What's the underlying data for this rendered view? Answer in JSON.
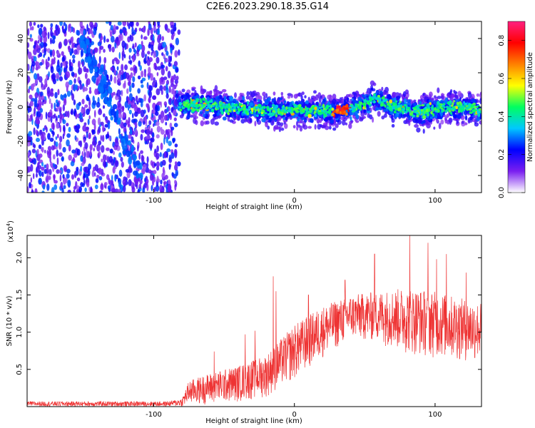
{
  "title": "C2E6.2023.290.18.35.G14",
  "chart_data": [
    {
      "type": "heatmap",
      "xlabel": "Height of straight line (km)",
      "ylabel": "Frequency (Hz)",
      "xlim": [
        -190,
        133
      ],
      "ylim": [
        -50,
        50
      ],
      "xticks": [
        -100,
        0,
        100
      ],
      "yticks": [
        -40,
        -20,
        0,
        20,
        40
      ],
      "noise_region_x": [
        -190,
        -82
      ],
      "noisy_streak": [
        {
          "x": -150,
          "y": 40
        },
        {
          "x": -130,
          "y": 0
        },
        {
          "x": -110,
          "y": -40
        }
      ],
      "ridge": [
        {
          "x": -82,
          "y": 1
        },
        {
          "x": -60,
          "y": 1
        },
        {
          "x": -40,
          "y": -1
        },
        {
          "x": -20,
          "y": -2
        },
        {
          "x": 0,
          "y": -2
        },
        {
          "x": 20,
          "y": -2
        },
        {
          "x": 30,
          "y": -2
        },
        {
          "x": 40,
          "y": -1
        },
        {
          "x": 50,
          "y": 2
        },
        {
          "x": 57,
          "y": 5
        },
        {
          "x": 70,
          "y": 0
        },
        {
          "x": 90,
          "y": -3
        },
        {
          "x": 110,
          "y": 0
        },
        {
          "x": 125,
          "y": 0
        },
        {
          "x": 133,
          "y": -3
        }
      ],
      "ridge_peak_x_range": [
        27,
        40
      ],
      "colorbar": {
        "label": "Normalized spectral amplitude",
        "range": [
          0,
          0.9
        ],
        "ticks": [
          0.0,
          0.2,
          0.4,
          0.6,
          0.8
        ],
        "tick_labels": [
          "0.0",
          "0.2",
          "0.4",
          "0.6",
          "0.8"
        ],
        "colors": [
          "#ffffff",
          "#7a1ef0",
          "#0000ff",
          "#00c8ff",
          "#00ff60",
          "#ffff00",
          "#ff8000",
          "#ff0000",
          "#ff2080"
        ]
      }
    },
    {
      "type": "line",
      "xlabel": "Height of straight line (km)",
      "ylabel": "SNR (10 * v/v)",
      "multiplier": "(x10",
      "multiplier_exp": "4",
      "multiplier_close": ")",
      "xlim": [
        -190,
        133
      ],
      "ylim": [
        0,
        23000
      ],
      "xticks": [
        -100,
        0,
        100
      ],
      "yticks": [
        5000,
        10000,
        15000,
        20000
      ],
      "ytick_labels": [
        "0.5",
        "1.0",
        "1.5",
        "2.0"
      ],
      "color": "#ee3333",
      "envelope": [
        {
          "x": -190,
          "base": 0,
          "top": 700
        },
        {
          "x": -90,
          "base": 0,
          "top": 700
        },
        {
          "x": -80,
          "base": 0,
          "top": 1100
        },
        {
          "x": -75,
          "base": 200,
          "top": 3500
        },
        {
          "x": -60,
          "base": 300,
          "top": 4500
        },
        {
          "x": -40,
          "base": 600,
          "top": 5500
        },
        {
          "x": -20,
          "base": 1200,
          "top": 7000
        },
        {
          "x": -10,
          "base": 2500,
          "top": 9000
        },
        {
          "x": 0,
          "base": 3500,
          "top": 11000
        },
        {
          "x": 20,
          "base": 6500,
          "top": 13500
        },
        {
          "x": 40,
          "base": 9000,
          "top": 15000
        },
        {
          "x": 60,
          "base": 8500,
          "top": 15500
        },
        {
          "x": 80,
          "base": 7000,
          "top": 16000
        },
        {
          "x": 100,
          "base": 6500,
          "top": 15500
        },
        {
          "x": 120,
          "base": 6000,
          "top": 14500
        },
        {
          "x": 133,
          "base": 6000,
          "top": 14000
        }
      ],
      "spikes": [
        {
          "x": -57,
          "y": 7400
        },
        {
          "x": -35,
          "y": 9700
        },
        {
          "x": -28,
          "y": 10200
        },
        {
          "x": -15,
          "y": 17500
        },
        {
          "x": -13,
          "y": 15500
        },
        {
          "x": 10,
          "y": 15000
        },
        {
          "x": 36,
          "y": 17000
        },
        {
          "x": 57,
          "y": 20500
        },
        {
          "x": 82,
          "y": 23000
        },
        {
          "x": 95,
          "y": 22000
        },
        {
          "x": 101,
          "y": 19800
        },
        {
          "x": 108,
          "y": 20500
        },
        {
          "x": 122,
          "y": 18000
        }
      ]
    }
  ]
}
